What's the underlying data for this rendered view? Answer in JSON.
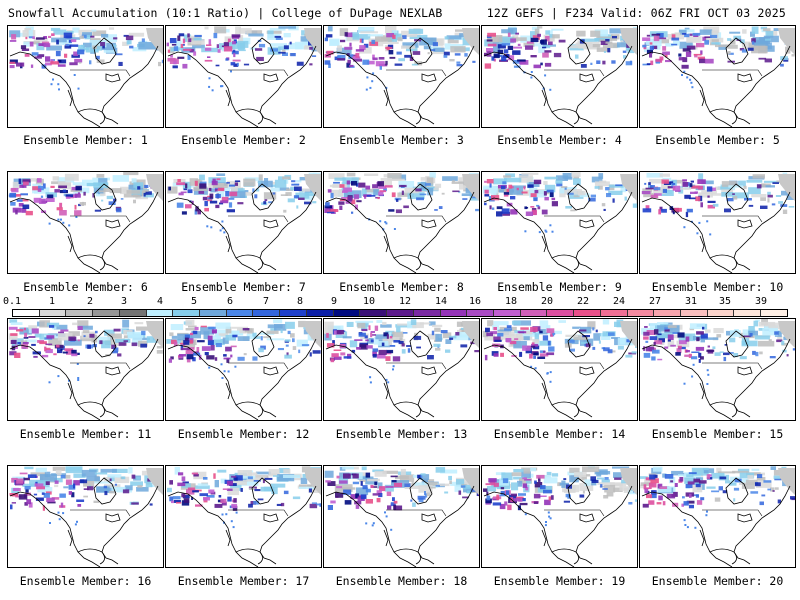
{
  "header": {
    "title_left": "Snowfall Accumulation (10:1 Ratio) | College of DuPage NEXLAB",
    "title_right": "12Z GEFS | F234 Valid: 06Z FRI OCT 03 2025"
  },
  "members": [
    "Ensemble Member: 1",
    "Ensemble Member: 2",
    "Ensemble Member: 3",
    "Ensemble Member: 4",
    "Ensemble Member: 5",
    "Ensemble Member: 6",
    "Ensemble Member: 7",
    "Ensemble Member: 8",
    "Ensemble Member: 9",
    "Ensemble Member: 10",
    "Ensemble Member: 11",
    "Ensemble Member: 12",
    "Ensemble Member: 13",
    "Ensemble Member: 14",
    "Ensemble Member: 15",
    "Ensemble Member: 16",
    "Ensemble Member: 17",
    "Ensemble Member: 18",
    "Ensemble Member: 19",
    "Ensemble Member: 20"
  ],
  "colorbar": {
    "labels": [
      "0.1",
      "1",
      "2",
      "3",
      "4",
      "5",
      "6",
      "7",
      "8",
      "9",
      "10",
      "12",
      "14",
      "16",
      "18",
      "20",
      "22",
      "24",
      "27",
      "31",
      "35",
      "39"
    ],
    "colors": [
      "#ffffff",
      "#d9d9d9",
      "#bdbdbd",
      "#969696",
      "#737373",
      "#bfefff",
      "#87ceeb",
      "#6fa8dc",
      "#4a86e8",
      "#3366dd",
      "#1e40cc",
      "#0b1fa8",
      "#000b80",
      "#3a1078",
      "#5c1a8c",
      "#7a2aa3",
      "#9433b8",
      "#a94bc4",
      "#c15fd0",
      "#d05fb8",
      "#dd4fa0",
      "#e8508a",
      "#ef6f94",
      "#f48aa0",
      "#f7a5ae",
      "#f9bfbf",
      "#fbd4cc",
      "#fde6dc",
      "#fff0e6"
    ]
  }
}
